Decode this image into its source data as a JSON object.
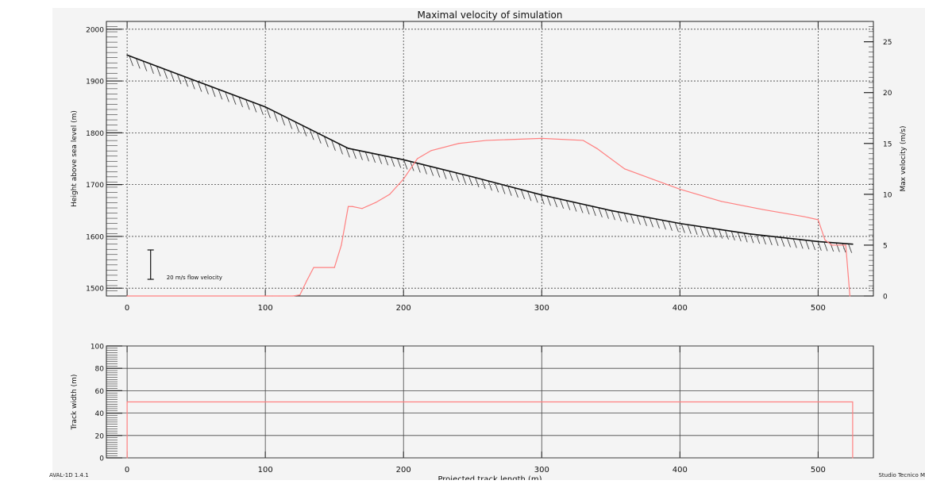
{
  "chart_data": [
    {
      "type": "line",
      "title": "Maximal velocity of simulation",
      "xlabel": "",
      "ylabel": "Height above sea level (m)",
      "y2label": "Max velocity (m/s)",
      "xlim": [
        -15,
        540
      ],
      "ylim": [
        1485,
        2015
      ],
      "y2lim": [
        0,
        27
      ],
      "x_ticks": [
        "0",
        "100",
        "200",
        "300",
        "400",
        "500"
      ],
      "y_ticks": [
        "1500",
        "1600",
        "1700",
        "1800",
        "1900",
        "2000"
      ],
      "y2_ticks": [
        "0",
        "5",
        "10",
        "15",
        "20",
        "25"
      ],
      "grid": true,
      "annotation": "20 m/s flow velocity",
      "series": [
        {
          "color": "#000000",
          "axis": "left",
          "style": "hatched",
          "x": [
            0,
            50,
            100,
            130,
            160,
            200,
            250,
            300,
            350,
            400,
            450,
            500,
            525
          ],
          "y": [
            1950,
            1900,
            1850,
            1810,
            1770,
            1748,
            1715,
            1680,
            1650,
            1625,
            1605,
            1590,
            1585
          ]
        },
        {
          "color": "#ff8080",
          "axis": "right",
          "x": [
            0,
            105,
            110,
            120,
            125,
            130,
            135,
            150,
            155,
            160,
            163,
            170,
            180,
            190,
            200,
            210,
            220,
            240,
            260,
            300,
            330,
            340,
            360,
            380,
            400,
            430,
            460,
            490,
            500,
            505,
            510,
            520,
            523
          ],
          "y": [
            0,
            0,
            0,
            0,
            0.1,
            1.5,
            2.8,
            2.8,
            5,
            8.8,
            8.8,
            8.6,
            9.2,
            10,
            11.5,
            13.5,
            14.3,
            15,
            15.3,
            15.5,
            15.3,
            14.5,
            12.5,
            11.5,
            10.5,
            9.3,
            8.5,
            7.8,
            7.5,
            5.5,
            5,
            5,
            0
          ]
        }
      ]
    },
    {
      "type": "line",
      "title": "",
      "xlabel": "Projected track length (m)",
      "ylabel": "Track width (m)",
      "xlim": [
        -15,
        540
      ],
      "ylim": [
        0,
        100
      ],
      "x_ticks": [
        "0",
        "100",
        "200",
        "300",
        "400",
        "500"
      ],
      "y_ticks": [
        "0",
        "20",
        "40",
        "60",
        "80",
        "100"
      ],
      "grid": true,
      "series": [
        {
          "color": "#ff8080",
          "x": [
            0,
            0,
            525,
            525
          ],
          "y": [
            0,
            50,
            50,
            0
          ]
        }
      ]
    }
  ],
  "footer": {
    "left": "AVAL-1D 1.4.1",
    "right": "Studio Tecnico M"
  }
}
